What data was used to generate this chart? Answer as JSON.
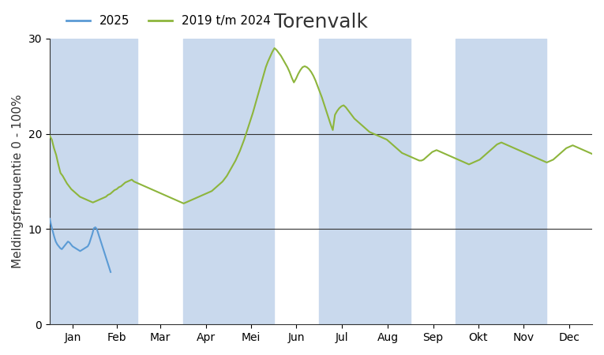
{
  "title": "Torenvalk",
  "ylabel": "Meldingsfrequentie 0 - 100%",
  "ylim": [
    0,
    30
  ],
  "yticks": [
    0,
    10,
    20,
    30
  ],
  "legend_labels": [
    "2025",
    "2019 t/m 2024"
  ],
  "line_color_2025": "#5b9bd5",
  "line_color_avg": "#8db53c",
  "bg_color": "#ffffff",
  "band_color": "#c9d9ed",
  "title_fontsize": 18,
  "label_fontsize": 11,
  "tick_fontsize": 10,
  "hline_color": "#333333",
  "hline_lw": 0.8,
  "month_labels": [
    "Jan",
    "Feb",
    "Mar",
    "Apr",
    "Mei",
    "Jun",
    "Jul",
    "Aug",
    "Sep",
    "Okt",
    "Nov",
    "Dec"
  ],
  "shaded_months": [
    1,
    2,
    4,
    5,
    7,
    8,
    10,
    11
  ],
  "avg_data": [
    19.8,
    19.4,
    18.5,
    17.8,
    16.8,
    15.9,
    15.6,
    15.2,
    14.8,
    14.5,
    14.2,
    14.0,
    13.8,
    13.6,
    13.4,
    13.3,
    13.2,
    13.1,
    13.0,
    12.9,
    12.8,
    12.9,
    13.0,
    13.1,
    13.2,
    13.3,
    13.4,
    13.6,
    13.7,
    13.9,
    14.1,
    14.2,
    14.4,
    14.5,
    14.7,
    14.9,
    15.0,
    15.1,
    15.2,
    15.0,
    14.9,
    14.8,
    14.7,
    14.6,
    14.5,
    14.4,
    14.3,
    14.2,
    14.1,
    14.0,
    13.9,
    13.8,
    13.7,
    13.6,
    13.5,
    13.4,
    13.3,
    13.2,
    13.1,
    13.0,
    12.9,
    12.8,
    12.7,
    12.8,
    12.9,
    13.0,
    13.1,
    13.2,
    13.3,
    13.4,
    13.5,
    13.6,
    13.7,
    13.8,
    13.9,
    14.0,
    14.2,
    14.4,
    14.6,
    14.8,
    15.0,
    15.3,
    15.6,
    16.0,
    16.4,
    16.8,
    17.2,
    17.7,
    18.2,
    18.8,
    19.4,
    20.1,
    20.8,
    21.5,
    22.2,
    23.0,
    23.8,
    24.6,
    25.4,
    26.2,
    27.0,
    27.6,
    28.1,
    28.6,
    29.0,
    28.8,
    28.5,
    28.2,
    27.8,
    27.4,
    27.0,
    26.5,
    25.9,
    25.4,
    25.8,
    26.3,
    26.7,
    27.0,
    27.1,
    27.0,
    26.8,
    26.5,
    26.1,
    25.6,
    25.0,
    24.4,
    23.8,
    23.1,
    22.4,
    21.7,
    21.0,
    20.4,
    22.0,
    22.4,
    22.7,
    22.9,
    23.0,
    22.8,
    22.5,
    22.2,
    21.9,
    21.6,
    21.4,
    21.2,
    21.0,
    20.8,
    20.6,
    20.4,
    20.2,
    20.1,
    20.0,
    19.9,
    19.8,
    19.7,
    19.6,
    19.5,
    19.4,
    19.2,
    19.0,
    18.8,
    18.6,
    18.4,
    18.2,
    18.0,
    17.9,
    17.8,
    17.7,
    17.6,
    17.5,
    17.4,
    17.3,
    17.2,
    17.2,
    17.3,
    17.5,
    17.7,
    17.9,
    18.1,
    18.2,
    18.3,
    18.2,
    18.1,
    18.0,
    17.9,
    17.8,
    17.7,
    17.6,
    17.5,
    17.4,
    17.3,
    17.2,
    17.1,
    17.0,
    16.9,
    16.8,
    16.9,
    17.0,
    17.1,
    17.2,
    17.3,
    17.5,
    17.7,
    17.9,
    18.1,
    18.3,
    18.5,
    18.7,
    18.9,
    19.0,
    19.1,
    19.0,
    18.9,
    18.8,
    18.7,
    18.6,
    18.5,
    18.4,
    18.3,
    18.2,
    18.1,
    18.0,
    17.9,
    17.8,
    17.7,
    17.6,
    17.5,
    17.4,
    17.3,
    17.2,
    17.1,
    17.0,
    17.1,
    17.2,
    17.3,
    17.5,
    17.7,
    17.9,
    18.1,
    18.3,
    18.5,
    18.6,
    18.7,
    18.8,
    18.7,
    18.6,
    18.5,
    18.4,
    18.3,
    18.2,
    18.1,
    18.0,
    17.9
  ],
  "y2025_data": [
    11.1,
    10.4,
    9.8,
    9.2,
    8.7,
    8.4,
    8.2,
    8.0,
    7.9,
    8.1,
    8.3,
    8.5,
    8.7,
    8.6,
    8.4,
    8.2,
    8.1,
    8.0,
    7.9,
    7.8,
    7.7,
    7.8,
    7.9,
    8.0,
    8.1,
    8.2,
    8.5,
    9.0,
    9.5,
    10.1,
    10.2,
    10.0,
    9.5,
    9.0,
    8.5,
    8.0,
    7.5,
    7.0,
    6.5,
    6.0,
    5.5
  ]
}
